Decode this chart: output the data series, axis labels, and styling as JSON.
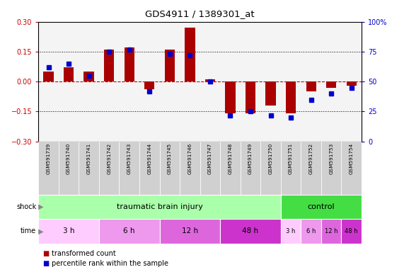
{
  "title": "GDS4911 / 1389301_at",
  "samples": [
    "GSM591739",
    "GSM591740",
    "GSM591741",
    "GSM591742",
    "GSM591743",
    "GSM591744",
    "GSM591745",
    "GSM591746",
    "GSM591747",
    "GSM591748",
    "GSM591749",
    "GSM591750",
    "GSM591751",
    "GSM591752",
    "GSM591753",
    "GSM591754"
  ],
  "transformed_count": [
    0.05,
    0.07,
    0.05,
    0.16,
    0.17,
    -0.04,
    0.16,
    0.27,
    0.01,
    -0.16,
    -0.16,
    -0.12,
    -0.16,
    -0.05,
    -0.03,
    -0.02
  ],
  "percentile_rank": [
    62,
    65,
    55,
    75,
    77,
    42,
    73,
    72,
    50,
    22,
    25,
    22,
    20,
    35,
    40,
    45
  ],
  "ylim_left": [
    -0.3,
    0.3
  ],
  "ylim_right": [
    0,
    100
  ],
  "yticks_left": [
    -0.3,
    -0.15,
    0.0,
    0.15,
    0.3
  ],
  "yticks_right": [
    0,
    25,
    50,
    75,
    100
  ],
  "bar_color": "#aa0000",
  "dot_color": "#0000cc",
  "hline_color": "#cc0000",
  "dotted_color": "#000000",
  "bg_color": "#ffffff",
  "shock_row": {
    "tbi_label": "traumatic brain injury",
    "tbi_color": "#aaffaa",
    "ctrl_label": "control",
    "ctrl_color": "#44dd44",
    "tbi_samples": 12,
    "ctrl_samples": 4
  },
  "time_row": {
    "tbi_groups": [
      {
        "label": "3 h",
        "count": 3,
        "color": "#ffccff"
      },
      {
        "label": "6 h",
        "count": 3,
        "color": "#ee99ee"
      },
      {
        "label": "12 h",
        "count": 3,
        "color": "#dd66dd"
      },
      {
        "label": "48 h",
        "count": 3,
        "color": "#cc33cc"
      }
    ],
    "ctrl_groups": [
      {
        "label": "3 h",
        "count": 1,
        "color": "#ffccff"
      },
      {
        "label": "6 h",
        "count": 1,
        "color": "#ee99ee"
      },
      {
        "label": "12 h",
        "count": 1,
        "color": "#dd66dd"
      },
      {
        "label": "48 h",
        "count": 1,
        "color": "#cc33cc"
      }
    ]
  },
  "legend": {
    "bar_label": "transformed count",
    "dot_label": "percentile rank within the sample"
  }
}
